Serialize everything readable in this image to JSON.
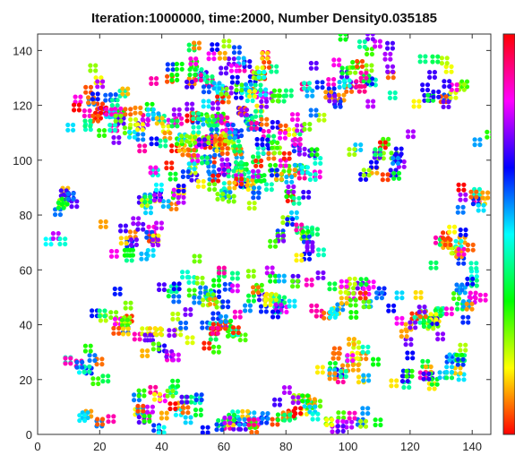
{
  "chart_data": {
    "type": "scatter",
    "title": "Iteration:1000000, time:2000, Number Density0.035185",
    "xlabel": "",
    "ylabel": "",
    "xlim": [
      0,
      146
    ],
    "ylim": [
      0,
      146
    ],
    "x_ticks": [
      "0",
      "20",
      "40",
      "60",
      "80",
      "100",
      "120",
      "140"
    ],
    "y_ticks": [
      "0",
      "20",
      "40",
      "60",
      "80",
      "100",
      "120",
      "140"
    ],
    "grid": false,
    "colorbar": {
      "placement": "right",
      "colormap": "hsv",
      "tick_labels": []
    },
    "marker": "four-lobed cluster",
    "point_count": 750,
    "points": []
  }
}
